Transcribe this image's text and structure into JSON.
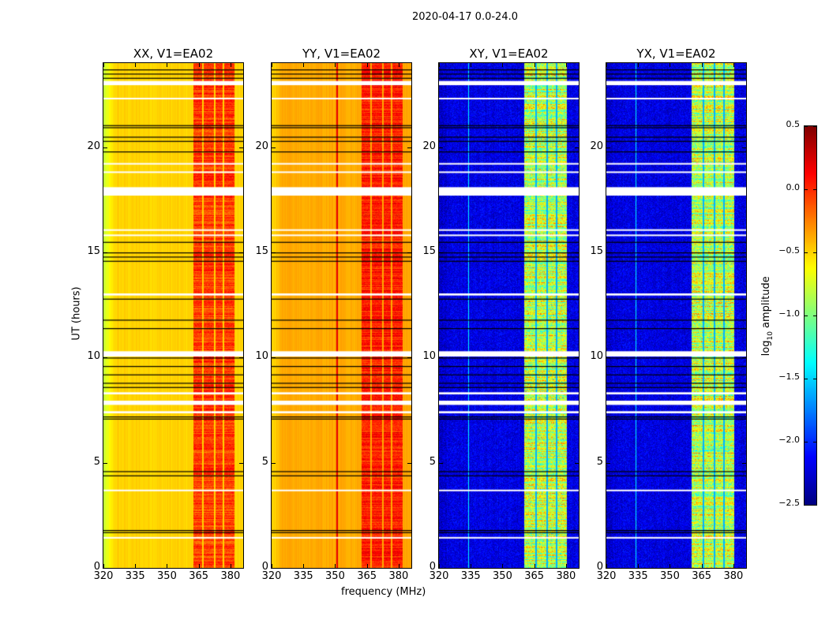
{
  "chart_data": {
    "type": "heatmap",
    "title": "2020-04-17 0.0-24.0",
    "xlabel": "frequency (MHz)",
    "ylabel": "UT (hours)",
    "xlim": [
      320,
      386
    ],
    "ylim": [
      0,
      24
    ],
    "xticks": [
      320,
      335,
      350,
      365,
      380
    ],
    "yticks": [
      0,
      5,
      10,
      15,
      20
    ],
    "colorbar": {
      "label_main": "log",
      "label_sub": "10",
      "label_rest": " amplitude",
      "colormap": "jet",
      "range": [
        -2.5,
        0.5
      ],
      "ticks": [
        0.5,
        0.0,
        -0.5,
        -1.0,
        -1.5,
        -2.0,
        -2.5
      ]
    },
    "flagged_hours": [
      [
        17.7,
        18.1
      ],
      [
        22.95,
        23.15
      ],
      [
        12.95,
        13.05
      ],
      [
        10.05,
        10.3
      ],
      [
        8.25,
        8.35
      ],
      [
        7.75,
        7.95
      ],
      [
        7.35,
        7.45
      ],
      [
        3.65,
        3.72
      ],
      [
        1.4,
        1.47
      ],
      [
        18.8,
        18.85
      ],
      [
        19.2,
        19.25
      ],
      [
        22.3,
        22.35
      ],
      [
        16.05,
        16.1
      ],
      [
        15.8,
        15.85
      ]
    ],
    "black_lines_hours": [
      23.3,
      23.5,
      23.7,
      21.05,
      20.95,
      20.5,
      20.3,
      19.8,
      15.5,
      15.0,
      14.8,
      14.6,
      12.8,
      11.8,
      11.4,
      10.0,
      9.6,
      9.2,
      8.8,
      8.6,
      7.2,
      7.1,
      4.6,
      4.4,
      1.8,
      1.7
    ],
    "panels": [
      {
        "title": "XX, V1=EA02",
        "background_level": -0.5,
        "edge_level": -0.8,
        "band_mhz": [
          362.5,
          382
        ],
        "band_level": -0.05,
        "band_gaps_mhz": [
          367,
          372.6,
          376.7
        ],
        "rfi_line_mhz": null,
        "rfi_level": null
      },
      {
        "title": "YY, V1=EA02",
        "background_level": -0.38,
        "edge_level": -0.5,
        "band_mhz": [
          362.5,
          382
        ],
        "band_level": 0.05,
        "band_gaps_mhz": [
          367,
          372.6,
          376.7
        ],
        "rfi_line_mhz": 351,
        "rfi_level": 0.2
      },
      {
        "title": "XY, V1=EA02",
        "background_level": -2.2,
        "edge_level": -2.3,
        "band_mhz": [
          360.2,
          380.4
        ],
        "band_level": -0.8,
        "band_gaps_mhz": [
          365.8,
          371,
          375.5
        ],
        "rfi_line_mhz": 334,
        "rfi_level": -1.4
      },
      {
        "title": "YX, V1=EA02",
        "background_level": -2.2,
        "edge_level": -2.3,
        "band_mhz": [
          360.2,
          380.4
        ],
        "band_level": -0.8,
        "band_gaps_mhz": [
          365.8,
          371,
          375.5
        ],
        "rfi_line_mhz": 334,
        "rfi_level": -1.4
      }
    ]
  }
}
